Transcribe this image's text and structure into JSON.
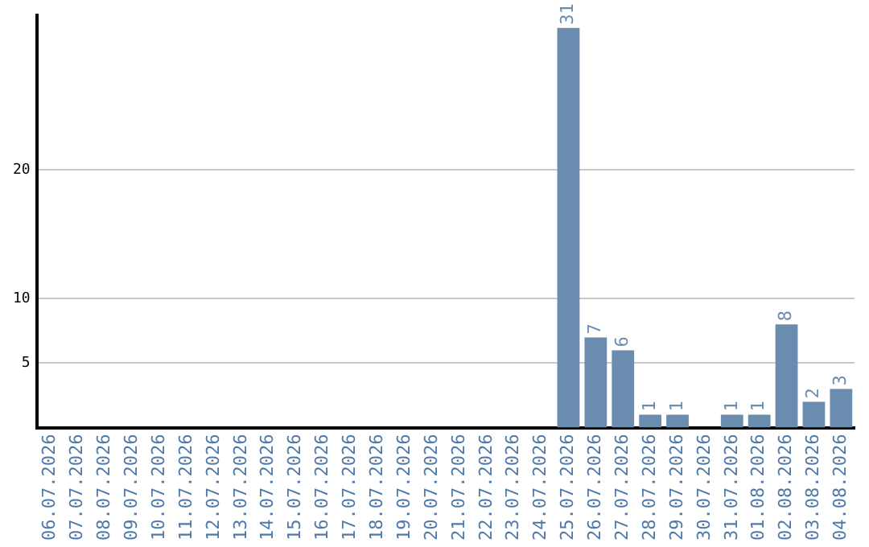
{
  "chart_data": {
    "type": "bar",
    "categories": [
      "06.07.2026",
      "07.07.2026",
      "08.07.2026",
      "09.07.2026",
      "10.07.2026",
      "11.07.2026",
      "12.07.2026",
      "13.07.2026",
      "14.07.2026",
      "15.07.2026",
      "16.07.2026",
      "17.07.2026",
      "18.07.2026",
      "19.07.2026",
      "20.07.2026",
      "21.07.2026",
      "22.07.2026",
      "23.07.2026",
      "24.07.2026",
      "25.07.2026",
      "26.07.2026",
      "27.07.2026",
      "28.07.2026",
      "29.07.2026",
      "30.07.2026",
      "31.07.2026",
      "01.08.2026",
      "02.08.2026",
      "03.08.2026",
      "04.08.2026"
    ],
    "values": [
      0,
      0,
      0,
      0,
      0,
      0,
      0,
      0,
      0,
      0,
      0,
      0,
      0,
      0,
      0,
      0,
      0,
      0,
      0,
      31,
      7,
      6,
      1,
      1,
      0,
      1,
      1,
      8,
      2,
      3
    ],
    "value_labels": [
      null,
      null,
      null,
      null,
      null,
      null,
      null,
      null,
      null,
      null,
      null,
      null,
      null,
      null,
      null,
      null,
      null,
      null,
      null,
      "31",
      "7",
      "6",
      "1",
      "1",
      null,
      "1",
      "1",
      "8",
      "2",
      "3"
    ],
    "color": "#6a8caf",
    "ylim": [
      0,
      32
    ],
    "yticks": [
      5,
      10,
      20
    ],
    "grid": "y",
    "legend": false
  }
}
